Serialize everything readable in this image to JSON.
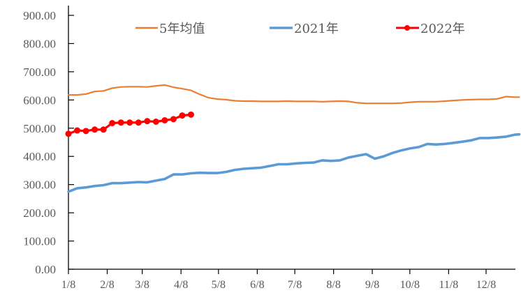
{
  "chart_data": {
    "type": "line",
    "title": "",
    "xlabel": "",
    "ylabel": "",
    "ylim": [
      0,
      900
    ],
    "y_ticks": [
      "0.00",
      "100.00",
      "200.00",
      "300.00",
      "400.00",
      "500.00",
      "600.00",
      "700.00",
      "800.00",
      "900.00"
    ],
    "y_tick_values": [
      0,
      100,
      200,
      300,
      400,
      500,
      600,
      700,
      800,
      900
    ],
    "x_unit": "week index from 1/8",
    "xlim": [
      0,
      51.5
    ],
    "x_ticks": [
      "1/8",
      "2/8",
      "3/8",
      "4/8",
      "5/8",
      "6/8",
      "7/8",
      "8/8",
      "9/8",
      "10/8",
      "11/8",
      "12/8"
    ],
    "x_tick_positions": [
      0,
      4.43,
      8.43,
      12.86,
      17.14,
      21.57,
      25.86,
      30.29,
      34.71,
      39.0,
      43.43,
      47.71
    ],
    "grid": false,
    "legend_position": "top",
    "legend": [
      "5年均值",
      "2021年",
      "2022年"
    ],
    "series": [
      {
        "name": "5年均值",
        "color": "#ED7D31",
        "markers": false,
        "x": [
          0,
          1,
          2,
          3,
          4,
          5,
          6,
          7,
          8,
          9,
          10,
          11,
          12,
          13,
          14,
          15,
          16,
          17,
          18,
          19,
          20,
          21,
          22,
          23,
          24,
          25,
          26,
          27,
          28,
          29,
          30,
          31,
          32,
          33,
          34,
          35,
          36,
          37,
          38,
          39,
          40,
          41,
          42,
          43,
          44,
          45,
          46,
          47,
          48,
          49,
          50,
          51,
          51.5
        ],
        "values": [
          618,
          618,
          621,
          630,
          632,
          642,
          646,
          647,
          647,
          646,
          650,
          653,
          645,
          640,
          634,
          620,
          608,
          603,
          601,
          597,
          596,
          596,
          595,
          595,
          595,
          596,
          595,
          595,
          595,
          594,
          595,
          596,
          595,
          590,
          588,
          588,
          588,
          588,
          589,
          592,
          594,
          594,
          594,
          596,
          598,
          600,
          601,
          602,
          602,
          604,
          612,
          610,
          610
        ]
      },
      {
        "name": "2021年",
        "color": "#5B9BD5",
        "markers": false,
        "x": [
          0,
          1,
          2,
          3,
          4,
          5,
          6,
          7,
          8,
          9,
          10,
          11,
          12,
          13,
          14,
          15,
          16,
          17,
          18,
          19,
          20,
          21,
          22,
          23,
          24,
          25,
          26,
          27,
          28,
          29,
          30,
          31,
          32,
          33,
          34,
          35,
          36,
          37,
          38,
          39,
          40,
          41,
          42,
          43,
          44,
          45,
          46,
          47,
          48,
          49,
          50,
          51,
          51.5
        ],
        "values": [
          275,
          287,
          290,
          295,
          298,
          305,
          305,
          307,
          309,
          308,
          314,
          320,
          336,
          336,
          340,
          342,
          341,
          341,
          345,
          352,
          356,
          358,
          360,
          366,
          372,
          372,
          375,
          377,
          378,
          386,
          384,
          386,
          396,
          402,
          408,
          392,
          400,
          412,
          421,
          428,
          433,
          444,
          442,
          444,
          448,
          452,
          457,
          465,
          465,
          467,
          470,
          477,
          478
        ]
      },
      {
        "name": "2022年",
        "color": "#FF0000",
        "markers": true,
        "x": [
          0,
          1,
          2,
          3,
          4,
          5,
          6,
          7,
          8,
          9,
          10,
          11,
          12,
          13,
          14
        ],
        "values": [
          480,
          492,
          490,
          495,
          495,
          518,
          520,
          520,
          520,
          525,
          523,
          528,
          532,
          545,
          548
        ]
      }
    ]
  }
}
